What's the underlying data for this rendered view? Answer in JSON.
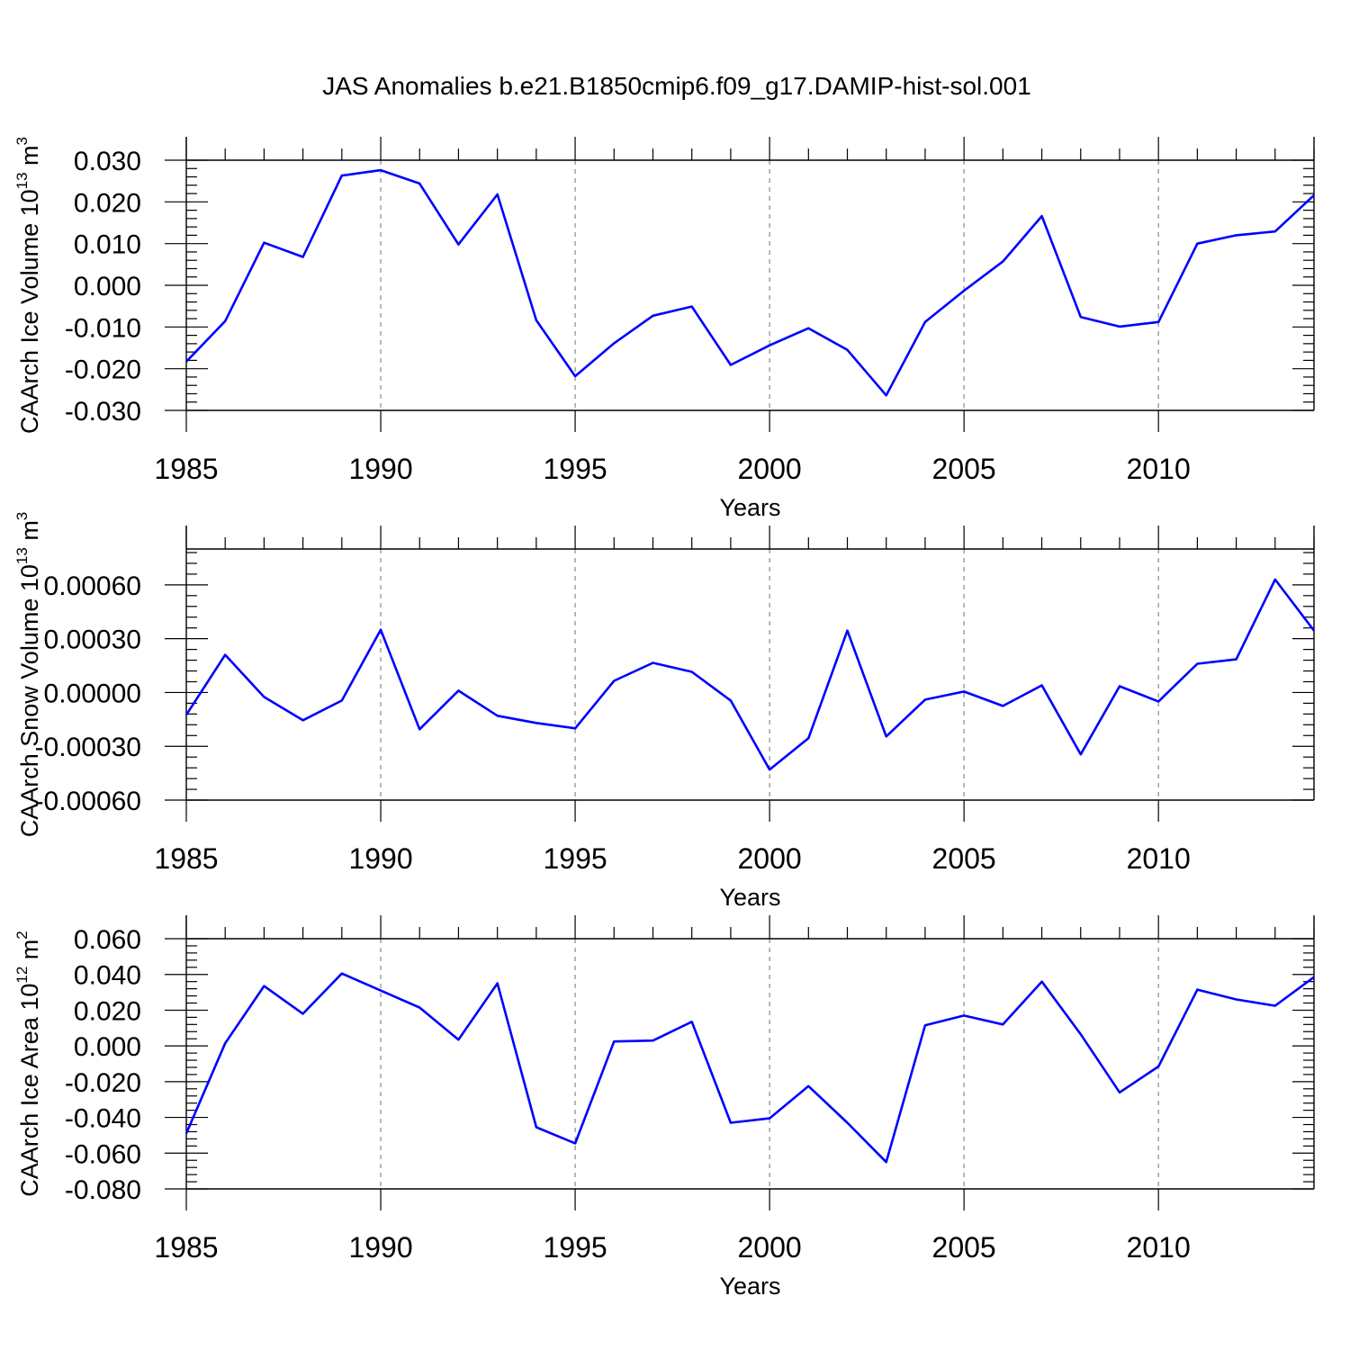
{
  "figure_title": "JAS Anomalies b.e21.B1850cmip6.f09_g17.DAMIP-hist-sol.001",
  "chart_data": [
    {
      "type": "line",
      "xlabel": "Years",
      "ylabel": "CAArch Ice Volume 10",
      "ylabel_sup": "13",
      "ylabel_unit": " m",
      "ylabel_unit_sup": "3",
      "xlim": [
        1985,
        2014
      ],
      "ylim": [
        -0.03,
        0.03
      ],
      "xticks": [
        1985,
        1990,
        1995,
        2000,
        2005,
        2010
      ],
      "xtick_labels": [
        "1985",
        "1990",
        "1995",
        "2000",
        "2005",
        "2010"
      ],
      "yticks": [
        -0.03,
        -0.02,
        -0.01,
        0.0,
        0.01,
        0.02,
        0.03
      ],
      "ytick_labels": [
        "-0.030",
        "-0.020",
        "-0.010",
        "0.000",
        "0.010",
        "0.020",
        "0.030"
      ],
      "grid": "vertical dashed at major x ticks",
      "color": "#0000ff",
      "x": [
        1985,
        1986,
        1987,
        1988,
        1989,
        1990,
        1991,
        1992,
        1993,
        1994,
        1995,
        1996,
        1997,
        1998,
        1999,
        2000,
        2001,
        2002,
        2003,
        2004,
        2005,
        2006,
        2007,
        2008,
        2009,
        2010,
        2011,
        2012,
        2013,
        2014
      ],
      "values": [
        -0.0183,
        -0.0086,
        0.0102,
        0.0068,
        0.0263,
        0.0276,
        0.0244,
        0.0098,
        0.0218,
        -0.0084,
        -0.0218,
        -0.0139,
        -0.0073,
        -0.0051,
        -0.0191,
        -0.0144,
        -0.0103,
        -0.0155,
        -0.0264,
        -0.0088,
        -0.0013,
        0.0057,
        0.0166,
        -0.0076,
        -0.0099,
        -0.0088,
        0.01,
        0.012,
        0.0129,
        0.0216
      ]
    },
    {
      "type": "line",
      "xlabel": "Years",
      "ylabel": "CAArch Snow Volume 10",
      "ylabel_sup": "13",
      "ylabel_unit": " m",
      "ylabel_unit_sup": "3",
      "xlim": [
        1985,
        2014
      ],
      "ylim": [
        -0.0006,
        0.0008
      ],
      "xticks": [
        1985,
        1990,
        1995,
        2000,
        2005,
        2010
      ],
      "xtick_labels": [
        "1985",
        "1990",
        "1995",
        "2000",
        "2005",
        "2010"
      ],
      "yticks": [
        -0.0006,
        -0.0003,
        0.0,
        0.0003,
        0.0006
      ],
      "ytick_labels": [
        "-0.00060",
        "-0.00030",
        "0.00000",
        "0.00030",
        "0.00060"
      ],
      "grid": "vertical dashed at major x ticks",
      "color": "#0000ff",
      "x": [
        1985,
        1986,
        1987,
        1988,
        1989,
        1990,
        1991,
        1992,
        1993,
        1994,
        1995,
        1996,
        1997,
        1998,
        1999,
        2000,
        2001,
        2002,
        2003,
        2004,
        2005,
        2006,
        2007,
        2008,
        2009,
        2010,
        2011,
        2012,
        2013,
        2014
      ],
      "values": [
        -0.000125,
        0.00021,
        -2.5e-05,
        -0.000155,
        -4.5e-05,
        0.00035,
        -0.000205,
        1e-05,
        -0.00013,
        -0.00017,
        -0.0002,
        6.5e-05,
        0.000165,
        0.000115,
        -4.5e-05,
        -0.00043,
        -0.000255,
        0.000345,
        -0.000245,
        -4e-05,
        5e-06,
        -7.5e-05,
        4e-05,
        -0.000345,
        3.5e-05,
        -5e-05,
        0.00016,
        0.000185,
        0.00063,
        0.000345
      ]
    },
    {
      "type": "line",
      "xlabel": "Years",
      "ylabel": "CAArch Ice Area 10",
      "ylabel_sup": "12",
      "ylabel_unit": " m",
      "ylabel_unit_sup": "2",
      "xlim": [
        1985,
        2014
      ],
      "ylim": [
        -0.08,
        0.06
      ],
      "xticks": [
        1985,
        1990,
        1995,
        2000,
        2005,
        2010
      ],
      "xtick_labels": [
        "1985",
        "1990",
        "1995",
        "2000",
        "2005",
        "2010"
      ],
      "yticks": [
        -0.08,
        -0.06,
        -0.04,
        -0.02,
        0.0,
        0.02,
        0.04,
        0.06
      ],
      "ytick_labels": [
        "-0.080",
        "-0.060",
        "-0.040",
        "-0.020",
        "0.000",
        "0.020",
        "0.040",
        "0.060"
      ],
      "grid": "vertical dashed at major x ticks",
      "color": "#0000ff",
      "x": [
        1985,
        1986,
        1987,
        1988,
        1989,
        1990,
        1991,
        1992,
        1993,
        1994,
        1995,
        1996,
        1997,
        1998,
        1999,
        2000,
        2001,
        2002,
        2003,
        2004,
        2005,
        2006,
        2007,
        2008,
        2009,
        2010,
        2011,
        2012,
        2013,
        2014
      ],
      "values": [
        -0.049,
        0.0015,
        0.0335,
        0.018,
        0.0405,
        0.031,
        0.0215,
        0.0035,
        0.035,
        -0.0455,
        -0.0545,
        0.0025,
        0.003,
        0.0135,
        -0.043,
        -0.0405,
        -0.0225,
        -0.043,
        -0.065,
        0.0115,
        0.017,
        0.012,
        0.036,
        0.0065,
        -0.026,
        -0.0115,
        0.0315,
        0.026,
        0.0225,
        0.0385
      ]
    }
  ]
}
